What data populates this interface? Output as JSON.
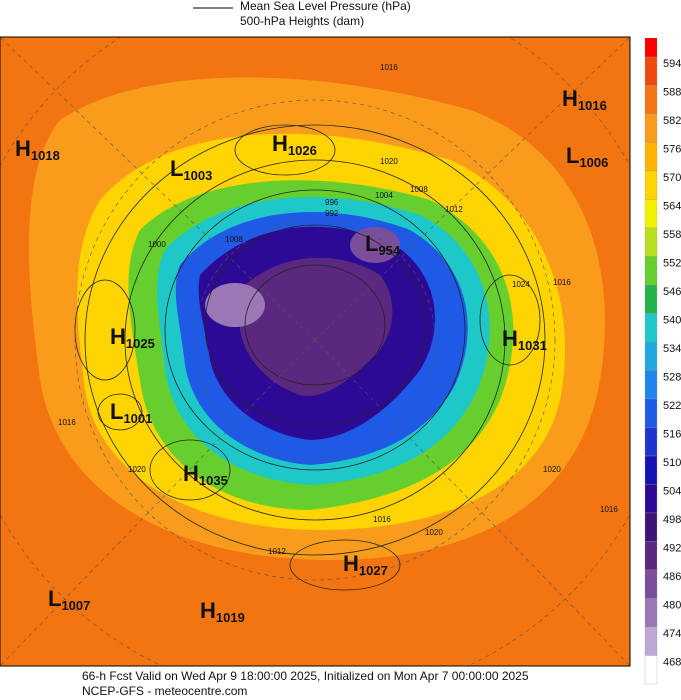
{
  "header": {
    "legend": [
      "Mean Sea Level Pressure (hPa)",
      "500-hPa Heights (dam)"
    ]
  },
  "colorbar": [
    {
      "value": 594,
      "color": "#ee4a10"
    },
    {
      "value": 588,
      "color": "#f37512"
    },
    {
      "value": 582,
      "color": "#f99c1c"
    },
    {
      "value": 576,
      "color": "#ffb400"
    },
    {
      "value": 570,
      "color": "#ffd400"
    },
    {
      "value": 564,
      "color": "#f2f200"
    },
    {
      "value": 558,
      "color": "#b8e020"
    },
    {
      "value": 552,
      "color": "#66cf2e"
    },
    {
      "value": 546,
      "color": "#24b44e"
    },
    {
      "value": 540,
      "color": "#1ec8c8"
    },
    {
      "value": 534,
      "color": "#22a8e0"
    },
    {
      "value": 528,
      "color": "#1e84f0"
    },
    {
      "value": 522,
      "color": "#1e5ae6"
    },
    {
      "value": 516,
      "color": "#1e34d2"
    },
    {
      "value": 510,
      "color": "#1414b4"
    },
    {
      "value": 504,
      "color": "#2d0a96"
    },
    {
      "value": 498,
      "color": "#3c1478"
    },
    {
      "value": 492,
      "color": "#5a287e"
    },
    {
      "value": 486,
      "color": "#7a4e9a"
    },
    {
      "value": 480,
      "color": "#9a78b6"
    },
    {
      "value": 474,
      "color": "#c0a8d6"
    },
    {
      "value": 468,
      "color": "#ffffff"
    }
  ],
  "centers": [
    {
      "letter": "H",
      "value": 1018
    },
    {
      "letter": "L",
      "value": 1003
    },
    {
      "letter": "H",
      "value": 1026
    },
    {
      "letter": "H",
      "value": 1016
    },
    {
      "letter": "L",
      "value": 1006
    },
    {
      "letter": "L",
      "value": 954
    },
    {
      "letter": "H",
      "value": 1025
    },
    {
      "letter": "H",
      "value": 1031
    },
    {
      "letter": "L",
      "value": 1001
    },
    {
      "letter": "H",
      "value": 1035
    },
    {
      "letter": "H",
      "value": 1027
    },
    {
      "letter": "L",
      "value": 1007
    },
    {
      "letter": "H",
      "value": 1019
    }
  ],
  "isobar_labels": [
    1016,
    1020,
    1012,
    1008,
    1004,
    996,
    992,
    1000,
    1008,
    1024,
    1016,
    1020,
    1016,
    1020,
    1016,
    1020,
    1012,
    1016
  ],
  "footer": [
    "66-h Fcst Valid on Wed Apr  9 18:00:00 2025, Initialized on Mon Apr  7 00:00:00 2025",
    "NCEP-GFS  - meteocentre.com"
  ]
}
